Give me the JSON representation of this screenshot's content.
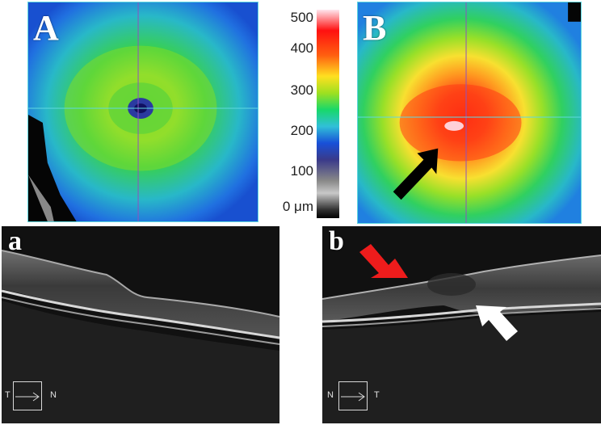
{
  "panels": {
    "A": {
      "label": "A"
    },
    "B": {
      "label": "B"
    },
    "a": {
      "label": "a",
      "orientation_left": "T",
      "orientation_right": "N"
    },
    "b": {
      "label": "b",
      "orientation_left": "N",
      "orientation_right": "T"
    }
  },
  "scale": {
    "ticks": [
      "500",
      "400",
      "300",
      "200",
      "100",
      "0 μm"
    ],
    "colors": [
      "#ffe6ee",
      "#ff1010",
      "#ffe020",
      "#18d86a",
      "#1850d8",
      "#888888",
      "#000000"
    ]
  },
  "annotations": {
    "black_arrow": "#000000",
    "red_arrow": "#ee1c1c",
    "white_arrow": "#ffffff"
  }
}
